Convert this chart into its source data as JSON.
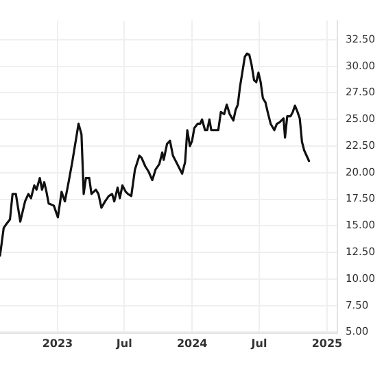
{
  "chart_data": {
    "type": "line",
    "x": [
      "2022-07-29",
      "2022-08-08",
      "2022-08-16",
      "2022-08-25",
      "2022-09-01",
      "2022-09-10",
      "2022-09-22",
      "2022-10-05",
      "2022-10-14",
      "2022-10-21",
      "2022-10-30",
      "2022-11-05",
      "2022-11-14",
      "2022-11-20",
      "2022-11-26",
      "2022-12-02",
      "2022-12-08",
      "2022-12-22",
      "2023-01-02",
      "2023-01-12",
      "2023-01-21",
      "2023-01-31",
      "2023-02-10",
      "2023-02-18",
      "2023-02-27",
      "2023-03-07",
      "2023-03-13",
      "2023-03-19",
      "2023-03-28",
      "2023-04-03",
      "2023-04-15",
      "2023-04-22",
      "2023-04-30",
      "2023-05-10",
      "2023-05-20",
      "2023-05-29",
      "2023-06-04",
      "2023-06-13",
      "2023-06-19",
      "2023-06-26",
      "2023-07-05",
      "2023-07-11",
      "2023-07-20",
      "2023-07-30",
      "2023-08-11",
      "2023-08-17",
      "2023-08-27",
      "2023-09-05",
      "2023-09-15",
      "2023-09-24",
      "2023-10-04",
      "2023-10-12",
      "2023-10-16",
      "2023-10-25",
      "2023-11-02",
      "2023-11-10",
      "2023-11-22",
      "2023-12-05",
      "2023-12-13",
      "2023-12-19",
      "2023-12-26",
      "2024-01-01",
      "2024-01-07",
      "2024-01-16",
      "2024-01-23",
      "2024-01-28",
      "2024-02-05",
      "2024-02-11",
      "2024-02-17",
      "2024-02-22",
      "2024-03-03",
      "2024-03-12",
      "2024-03-19",
      "2024-03-28",
      "2024-04-04",
      "2024-04-12",
      "2024-04-22",
      "2024-04-28",
      "2024-05-04",
      "2024-05-10",
      "2024-05-17",
      "2024-05-23",
      "2024-05-29",
      "2024-06-04",
      "2024-06-10",
      "2024-06-17",
      "2024-06-23",
      "2024-06-29",
      "2024-07-05",
      "2024-07-11",
      "2024-07-18",
      "2024-07-24",
      "2024-08-01",
      "2024-08-11",
      "2024-08-18",
      "2024-08-24",
      "2024-08-30",
      "2024-09-05",
      "2024-09-09",
      "2024-09-15",
      "2024-09-24",
      "2024-09-30",
      "2024-10-06",
      "2024-10-13",
      "2024-10-19",
      "2024-10-25",
      "2024-10-31",
      "2024-11-13"
    ],
    "series": [
      {
        "color": "#111111",
        "values": [
          12.2,
          14.8,
          15.2,
          15.6,
          18.0,
          18.0,
          15.4,
          17.3,
          18.0,
          17.6,
          18.8,
          18.4,
          19.5,
          18.4,
          19.1,
          18.2,
          17.1,
          16.9,
          15.8,
          18.2,
          17.3,
          19.1,
          21.0,
          22.7,
          24.6,
          23.6,
          18.0,
          19.5,
          19.5,
          18.0,
          18.4,
          18.0,
          16.7,
          17.3,
          17.8,
          18.0,
          17.3,
          18.6,
          17.6,
          18.8,
          18.2,
          18.0,
          17.8,
          20.3,
          21.6,
          21.4,
          20.6,
          20.1,
          19.3,
          20.3,
          20.8,
          21.9,
          21.2,
          22.7,
          23.0,
          21.6,
          20.8,
          19.9,
          21.0,
          24.0,
          22.5,
          23.0,
          24.2,
          24.6,
          24.6,
          25.0,
          24.0,
          24.0,
          25.0,
          24.0,
          24.0,
          24.0,
          25.7,
          25.5,
          26.4,
          25.5,
          24.9,
          25.9,
          26.4,
          28.1,
          29.6,
          30.9,
          31.2,
          31.1,
          30.2,
          28.7,
          28.5,
          29.4,
          28.5,
          27.0,
          26.6,
          25.7,
          24.6,
          24.0,
          24.6,
          24.7,
          24.9,
          25.1,
          23.3,
          25.3,
          25.3,
          25.7,
          26.3,
          25.7,
          25.1,
          22.9,
          22.1,
          21.1
        ]
      }
    ],
    "xlim": [
      "2022-07-29",
      "2025-01-29"
    ],
    "xticks": [
      {
        "value": "2023-01-01",
        "label": "2023"
      },
      {
        "value": "2023-07-01",
        "label": "Jul"
      },
      {
        "value": "2024-01-01",
        "label": "2024"
      },
      {
        "value": "2024-07-01",
        "label": "Jul"
      },
      {
        "value": "2025-01-01",
        "label": "2025"
      }
    ],
    "ylim": [
      4.9,
      34.3
    ],
    "yticks": [
      {
        "value": 5,
        "label": "5.00"
      },
      {
        "value": 7.5,
        "label": "7.50"
      },
      {
        "value": 10,
        "label": "10.00"
      },
      {
        "value": 12.5,
        "label": "12.50"
      },
      {
        "value": 15,
        "label": "15.00"
      },
      {
        "value": 17.5,
        "label": "17.50"
      },
      {
        "value": 20,
        "label": "20.00"
      },
      {
        "value": 22.5,
        "label": "22.50"
      },
      {
        "value": 25,
        "label": "25.00"
      },
      {
        "value": 27.5,
        "label": "27.50"
      },
      {
        "value": 30,
        "label": "30.00"
      },
      {
        "value": 32.5,
        "label": "32.50"
      }
    ],
    "grid": true,
    "legend": false,
    "marker": "none",
    "line_style": "solid"
  }
}
